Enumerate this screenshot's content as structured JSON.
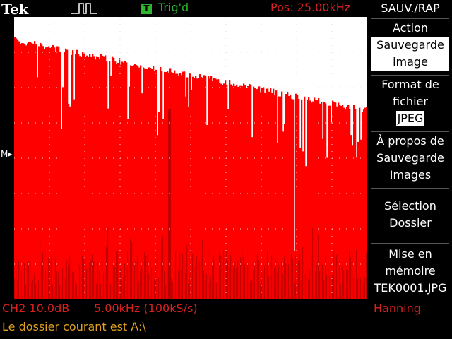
{
  "header": {
    "brand": "Tek",
    "trigger_box": "T",
    "trigger_status": "Trig'd",
    "position": "Pos: 25.00kHz"
  },
  "menu": {
    "title": "SAUV./RAP",
    "action_label": "Action",
    "action_value_line1": "Sauvegarde",
    "action_value_line2": "image",
    "format_line1": "Format de",
    "format_line2": "fichier",
    "format_value": "JPEG",
    "about_line1": "À propos de",
    "about_line2": "Sauvegarde",
    "about_line3": "Images",
    "folder_line1": "Sélection",
    "folder_line2": "Dossier",
    "store_line1": "Mise en",
    "store_line2": "mémoire",
    "store_file": "TEK0001.JPG"
  },
  "footer": {
    "channel": "CH2 10.0dB",
    "timebase": "5.00kHz (100kS/s)",
    "window": "Hanning",
    "status": "Le dossier courant est A:\\"
  },
  "screen": {
    "marker": "M▸",
    "colors": {
      "background": "#ffffff",
      "trace": "#ff0000",
      "noise": "#b40000",
      "grid": "#ffd0d0"
    }
  }
}
